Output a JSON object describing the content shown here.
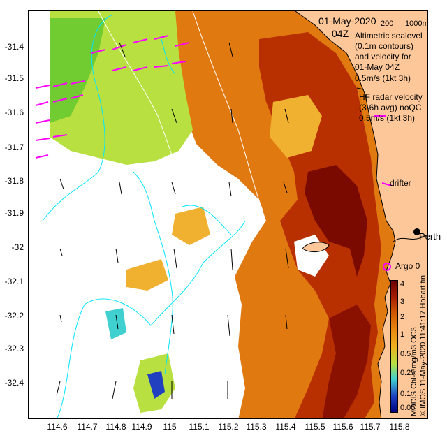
{
  "title": {
    "date": "01-May-2020",
    "hour": "04Z",
    "scale_label": "200",
    "scale_label2": "1000m"
  },
  "legend": {
    "altimetric_line1": "Altimetric sealevel",
    "altimetric_line2": "(0.1m contours)",
    "altimetric_line3": "and velocity for",
    "altimetric_line4": "01-May 04Z",
    "altimetric_speed": "0.5m/s (1kt 3h)",
    "hf_line1": "HF radar velocity",
    "hf_line2": "(3-6h avg) noQC",
    "hf_speed": "0.5m/s (1kt 3h)",
    "drifter_label": "drifter",
    "argo_label": "Argo 0",
    "city_label": "Perth",
    "hobart_label": "Hobart tin"
  },
  "axes": {
    "y_ticks": [
      "-31.4",
      "-31.5",
      "-31.6",
      "-31.7",
      "-31.8",
      "-31.9",
      "-32",
      "-32.1",
      "-32.2",
      "-32.3",
      "-32.4"
    ],
    "x_ticks": [
      "114.6",
      "114.7",
      "114.8",
      "114.9",
      "115",
      "115.1",
      "115.2",
      "115.3",
      "115.4",
      "115.5",
      "115.6",
      "115.7",
      "115.8"
    ]
  },
  "colorbar": {
    "ticks": [
      "4",
      "3",
      "2",
      "1",
      "0.5",
      "0.25",
      "0.1",
      "0.05"
    ],
    "colors": [
      "#6b0000",
      "#a62000",
      "#d05a00",
      "#e88a10",
      "#f0b020",
      "#b8e040",
      "#40d0d0",
      "#2040c0",
      "#000080"
    ]
  },
  "credit": "© IMOS 11-May-2020 11:41:17",
  "product": "MODIS Chl-a mg/m3 OC3",
  "colors": {
    "land": "#fdc79a",
    "contour": "#00e5ff",
    "hf_arrow": "#ff00ff",
    "alt_arrow": "#000000"
  }
}
